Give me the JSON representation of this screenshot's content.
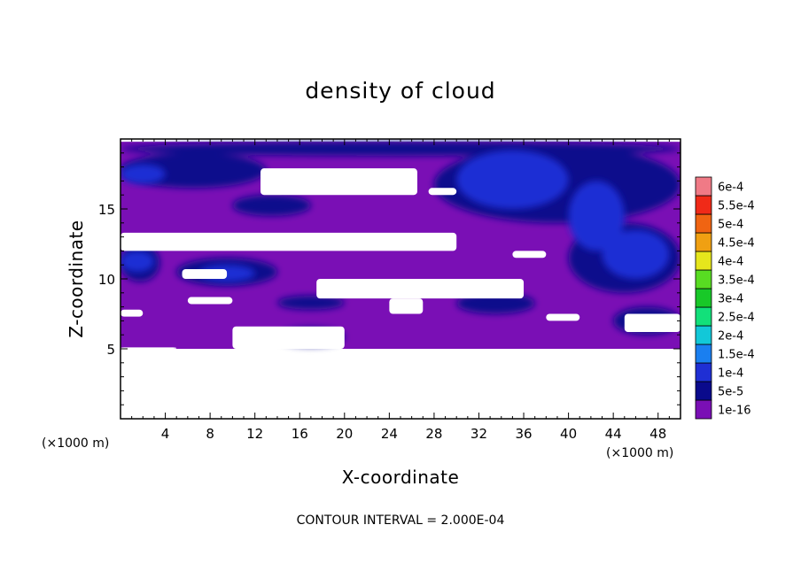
{
  "chart_data": {
    "type": "heatmap",
    "title": "density of cloud",
    "xlabel": "X-coordinate",
    "ylabel": "Z-coordinate",
    "x_unit": "(×1000 m)",
    "y_unit": "(×1000 m)",
    "xlim": [
      0,
      50
    ],
    "ylim": [
      0,
      20
    ],
    "x_ticks": [
      4,
      8,
      12,
      16,
      20,
      24,
      28,
      32,
      36,
      40,
      44,
      48
    ],
    "y_ticks": [
      5,
      10,
      15
    ],
    "footnote": "CONTOUR INTERVAL = 2.000E-04",
    "colorbar": {
      "levels": [
        "1e-16",
        "5e-5",
        "1e-4",
        "1.5e-4",
        "2e-4",
        "2.5e-4",
        "3e-4",
        "3.5e-4",
        "4e-4",
        "4.5e-4",
        "5e-4",
        "5.5e-4",
        "6e-4"
      ],
      "colors": [
        "#7a0fb5",
        "#0a0a8c",
        "#1f2fd4",
        "#1a7ff0",
        "#12c8d8",
        "#12e07a",
        "#18c828",
        "#58dc22",
        "#e6e61c",
        "#f0a012",
        "#f06412",
        "#f02a18",
        "#f07a86"
      ]
    },
    "data_region": {
      "z_min": 5,
      "z_max": 19.8,
      "background_level": "1e-16"
    },
    "max_level_observed": "1e-4",
    "dark_blue_regions": [
      {
        "x": [
          0,
          13
        ],
        "z": [
          16.5,
          19.0
        ],
        "level": "5e-5"
      },
      {
        "x": [
          0,
          50
        ],
        "z": [
          18.8,
          19.8
        ],
        "level": "5e-5"
      },
      {
        "x": [
          0,
          3.5
        ],
        "z": [
          9.8,
          12.5
        ],
        "level": "5e-5"
      },
      {
        "x": [
          5,
          14
        ],
        "z": [
          9.5,
          11.5
        ],
        "level": "5e-5"
      },
      {
        "x": [
          10,
          17
        ],
        "z": [
          14.5,
          16.0
        ],
        "level": "5e-5"
      },
      {
        "x": [
          14,
          20
        ],
        "z": [
          7.8,
          8.8
        ],
        "level": "5e-5"
      },
      {
        "x": [
          14,
          20
        ],
        "z": [
          5.2,
          6.5
        ],
        "level": "5e-5"
      },
      {
        "x": [
          30,
          37
        ],
        "z": [
          7.5,
          9.0
        ],
        "level": "5e-5"
      },
      {
        "x": [
          28,
          50
        ],
        "z": [
          14.0,
          19.5
        ],
        "level": "5e-5"
      },
      {
        "x": [
          40,
          50
        ],
        "z": [
          9.0,
          14.0
        ],
        "level": "5e-5"
      },
      {
        "x": [
          44,
          50
        ],
        "z": [
          6.0,
          8.0
        ],
        "level": "5e-5"
      }
    ],
    "mid_blue_regions": [
      {
        "x": [
          0,
          4
        ],
        "z": [
          16.8,
          18.2
        ],
        "level": "1e-4"
      },
      {
        "x": [
          0,
          3
        ],
        "z": [
          10.5,
          12.0
        ],
        "level": "1e-4"
      },
      {
        "x": [
          7,
          12
        ],
        "z": [
          9.8,
          11.0
        ],
        "level": "1e-4"
      },
      {
        "x": [
          30,
          40
        ],
        "z": [
          15.0,
          19.2
        ],
        "level": "1e-4"
      },
      {
        "x": [
          40,
          45
        ],
        "z": [
          12.0,
          17.0
        ],
        "level": "1e-4"
      },
      {
        "x": [
          43,
          49
        ],
        "z": [
          10.0,
          13.5
        ],
        "level": "1e-4"
      }
    ],
    "white_gaps": [
      {
        "x": [
          12.5,
          26.5
        ],
        "z": [
          16.0,
          17.9
        ]
      },
      {
        "x": [
          27.5,
          30
        ],
        "z": [
          16.0,
          16.5
        ]
      },
      {
        "x": [
          0,
          30
        ],
        "z": [
          12.0,
          13.3
        ]
      },
      {
        "x": [
          35,
          38
        ],
        "z": [
          11.5,
          12.0
        ]
      },
      {
        "x": [
          17.5,
          36
        ],
        "z": [
          8.6,
          10.0
        ]
      },
      {
        "x": [
          24,
          27
        ],
        "z": [
          7.5,
          8.6
        ]
      },
      {
        "x": [
          0,
          2
        ],
        "z": [
          7.3,
          7.8
        ]
      },
      {
        "x": [
          5.5,
          9.5
        ],
        "z": [
          10.0,
          10.7
        ]
      },
      {
        "x": [
          6,
          10
        ],
        "z": [
          8.2,
          8.7
        ]
      },
      {
        "x": [
          10,
          20
        ],
        "z": [
          5.0,
          6.6
        ]
      },
      {
        "x": [
          0,
          5
        ],
        "z": [
          5.0,
          5.1
        ]
      },
      {
        "x": [
          45,
          50
        ],
        "z": [
          6.2,
          7.5
        ]
      },
      {
        "x": [
          38,
          41
        ],
        "z": [
          7.0,
          7.5
        ]
      }
    ]
  }
}
